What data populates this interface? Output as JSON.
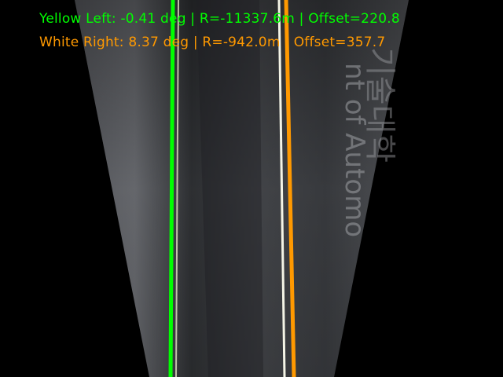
{
  "hud": {
    "yellow_left": {
      "label": "Yellow Left",
      "angle": "-0.41",
      "angle_unit": "deg",
      "radius": "R=-11337.6m",
      "offset": "Offset=220.8",
      "text": "Yellow Left: -0.41 deg | R=-11337.6m | Offset=220.8",
      "color": "#00ff00"
    },
    "white_right": {
      "label": "White Right",
      "angle": "8.37",
      "angle_unit": "deg",
      "radius": "R=-942.0m",
      "offset": "Offset=357.7",
      "text": "White Right: 8.37 deg | R=-942.0m | Offset=357.7",
      "color": "#ff9900"
    }
  },
  "scene": {
    "background_color": "#000000",
    "road_color": "#4a4c50",
    "lane_overlay_yellow_left_color": "#00ff00",
    "lane_overlay_white_right_color": "#ff9900",
    "painted_line_color": "#f4f4e6",
    "watermark_text": "nt of Automo",
    "watermark_text_2": "기술대학"
  }
}
